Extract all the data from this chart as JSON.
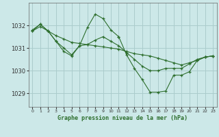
{
  "title": "Graphe pression niveau de la mer (hPa)",
  "bg_color": "#cce8e8",
  "grid_color": "#aacccc",
  "line_color": "#2d6e2d",
  "xlim": [
    -0.5,
    23.5
  ],
  "ylim": [
    1028.4,
    1033.0
  ],
  "yticks": [
    1029,
    1030,
    1031,
    1032
  ],
  "xticks": [
    0,
    1,
    2,
    3,
    4,
    5,
    6,
    7,
    8,
    9,
    10,
    11,
    12,
    13,
    14,
    15,
    16,
    17,
    18,
    19,
    20,
    21,
    22,
    23
  ],
  "figsize": [
    3.2,
    2.0
  ],
  "dpi": 100,
  "series": [
    {
      "x": [
        0,
        1,
        2,
        3,
        4,
        5,
        6,
        7,
        8,
        9,
        10,
        11,
        12,
        13,
        14,
        15,
        16,
        17,
        18,
        19,
        20,
        21,
        22,
        23
      ],
      "y": [
        1031.75,
        1031.95,
        1031.75,
        1031.55,
        1031.4,
        1031.25,
        1031.2,
        1031.15,
        1031.1,
        1031.05,
        1031.0,
        1030.95,
        1030.85,
        1030.75,
        1030.7,
        1030.65,
        1030.55,
        1030.45,
        1030.35,
        1030.25,
        1030.35,
        1030.45,
        1030.6,
        1030.65
      ]
    },
    {
      "x": [
        0,
        1,
        2,
        3,
        4,
        5,
        6,
        7,
        8,
        9,
        10,
        11,
        12,
        13,
        14,
        15,
        16,
        17,
        18,
        19,
        20,
        21,
        22,
        23
      ],
      "y": [
        1031.8,
        1032.05,
        1031.75,
        1031.3,
        1031.0,
        1030.7,
        1031.1,
        1031.15,
        1031.35,
        1031.5,
        1031.3,
        1031.1,
        1030.8,
        1030.5,
        1030.2,
        1030.0,
        1030.0,
        1030.1,
        1030.1,
        1030.1,
        1030.3,
        1030.5,
        1030.6,
        1030.65
      ]
    },
    {
      "x": [
        0,
        1,
        2,
        3,
        4,
        5,
        6,
        7,
        8,
        9,
        10,
        11
      ],
      "y": [
        1031.75,
        1032.05,
        1031.75,
        1031.3,
        1030.85,
        1030.65,
        1031.1,
        1031.9,
        1032.5,
        1032.3,
        1031.8,
        1031.5
      ]
    },
    {
      "x": [
        11,
        12,
        13,
        14,
        15,
        16,
        17,
        18,
        19,
        20,
        21,
        22,
        23
      ],
      "y": [
        1031.5,
        1030.7,
        1030.1,
        1029.6,
        1029.05,
        1029.05,
        1029.1,
        1029.8,
        1029.8,
        1029.95,
        1030.45,
        1030.6,
        1030.65
      ]
    }
  ]
}
